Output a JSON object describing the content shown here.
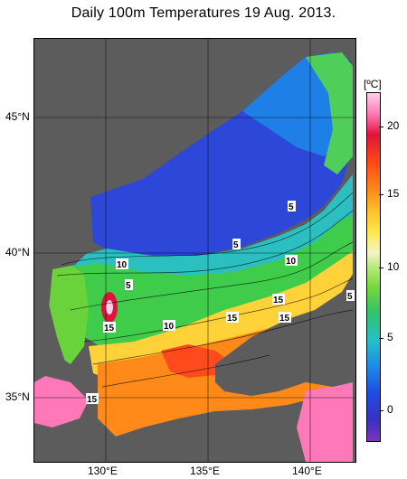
{
  "title": "Daily 100m Temperatures 19 Aug. 2013.",
  "colorbar": {
    "unit": "[ºC]",
    "ticks": [
      "20",
      "15",
      "10",
      "5",
      "0"
    ]
  },
  "axes": {
    "lat_labels": [
      "45°N",
      "40°N",
      "35°N"
    ],
    "lon_labels": [
      "130°E",
      "135°E",
      "140°E"
    ]
  },
  "contour_labels": [
    "10",
    "5",
    "15",
    "10",
    "15",
    "5",
    "10",
    "5",
    "15",
    "15",
    "5",
    "15"
  ],
  "colors": {
    "land": "#5c5c5c",
    "cold": "#2a3fd6",
    "warm": "#ff7a1a",
    "hot": "#ff7ab8"
  }
}
